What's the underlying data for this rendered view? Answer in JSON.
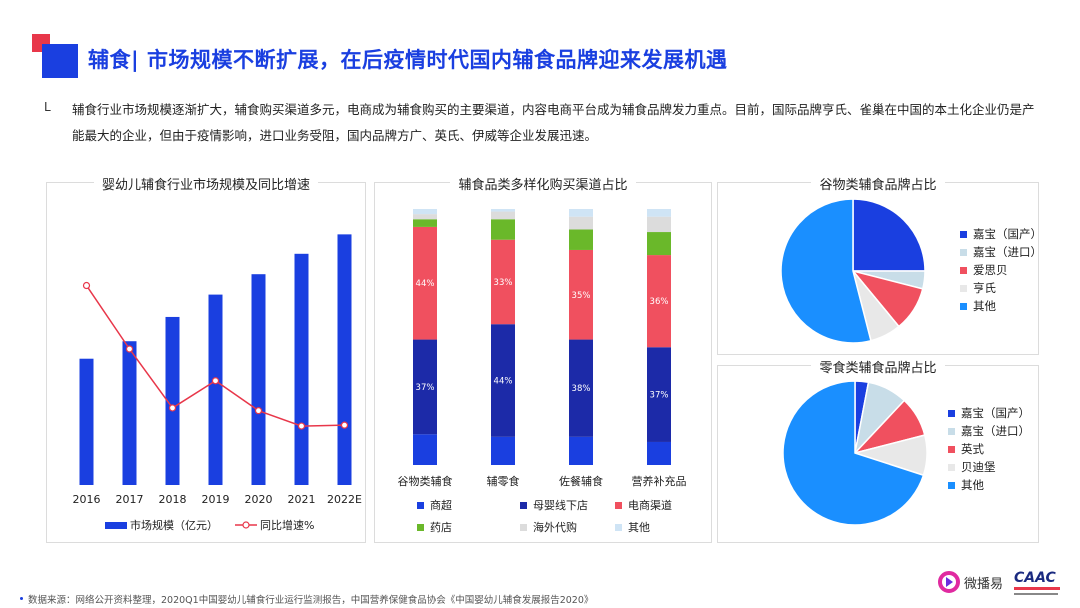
{
  "header": {
    "title": "辅食| 市场规模不断扩展，在后疫情时代国内辅食品牌迎来发展机遇",
    "bullet": "L",
    "summary": "辅食行业市场规模逐渐扩大，辅食购买渠道多元，电商成为辅食购买的主要渠道，内容电商平台成为辅食品牌发力重点。目前，国际品牌亨氏、雀巢在中国的本土化企业仍是产能最大的企业，但由于疫情影响，进口业务受阻，国内品牌方广、英氏、伊威等企业发展迅速。"
  },
  "colors": {
    "accent_blue": "#1a3fe0",
    "accent_red": "#e8374a"
  },
  "chart_data": [
    {
      "type": "bar",
      "title": "婴幼儿辅食行业市场规模及同比增速",
      "categories": [
        "2016",
        "2017",
        "2018",
        "2019",
        "2020",
        "2021",
        "2022E"
      ],
      "series": [
        {
          "name": "市场规模（亿元）",
          "type": "bar",
          "color": "#1a3fe0",
          "values": [
            130,
            148,
            173,
            196,
            217,
            238,
            258
          ]
        },
        {
          "name": "同比增速%",
          "type": "line",
          "color": "#e8374a",
          "values": [
            22,
            15,
            8.5,
            11.5,
            8.2,
            6.5,
            6.6
          ]
        }
      ],
      "ylim": [
        0,
        280
      ],
      "ylim_secondary": [
        0,
        30
      ],
      "legend": [
        "市场规模（亿元）",
        "同比增速%"
      ],
      "legend_position": "bottom",
      "grid": false
    },
    {
      "type": "bar",
      "stacked": true,
      "percent": true,
      "title": "辅食品类多样化购买渠道占比",
      "categories": [
        "谷物类辅食",
        "辅零食",
        "佐餐辅食",
        "营养补充品"
      ],
      "series": [
        {
          "name": "商超",
          "color": "#1a3fe0",
          "values": [
            12,
            11,
            11,
            9
          ]
        },
        {
          "name": "母婴线下店",
          "color": "#1c2aa8",
          "values": [
            37,
            44,
            38,
            37
          ]
        },
        {
          "name": "电商渠道",
          "color": "#f0505f",
          "values": [
            44,
            33,
            35,
            36
          ]
        },
        {
          "name": "药店",
          "color": "#6ab82a",
          "values": [
            3,
            8,
            8,
            9
          ]
        },
        {
          "name": "海外代购",
          "color": "#dcdcdc",
          "values": [
            2,
            3,
            5,
            6
          ]
        },
        {
          "name": "其他",
          "color": "#cfe4f5",
          "values": [
            2,
            1,
            3,
            3
          ]
        }
      ],
      "data_labels": [
        {
          "category": "谷物类辅食",
          "series": "母婴线下店",
          "label": "37%"
        },
        {
          "category": "谷物类辅食",
          "series": "电商渠道",
          "label": "44%"
        },
        {
          "category": "辅零食",
          "series": "母婴线下店",
          "label": "44%"
        },
        {
          "category": "辅零食",
          "series": "电商渠道",
          "label": "33%"
        },
        {
          "category": "佐餐辅食",
          "series": "母婴线下店",
          "label": "38%"
        },
        {
          "category": "佐餐辅食",
          "series": "电商渠道",
          "label": "35%"
        },
        {
          "category": "营养补充品",
          "series": "母婴线下店",
          "label": "37%"
        },
        {
          "category": "营养补充品",
          "series": "电商渠道",
          "label": "36%"
        }
      ],
      "ylim": [
        0,
        100
      ],
      "legend_position": "bottom"
    },
    {
      "type": "pie",
      "title": "谷物类辅食品牌占比",
      "labels": [
        "嘉宝（国产）",
        "嘉宝（进口）",
        "爱思贝",
        "亨氏",
        "其他"
      ],
      "values": [
        25,
        4,
        10,
        7,
        54
      ],
      "colors": [
        "#1a3fe0",
        "#c8dde8",
        "#f0505f",
        "#e8e8e8",
        "#1a8fff"
      ],
      "legend_position": "right"
    },
    {
      "type": "pie",
      "title": "零食类辅食品牌占比",
      "labels": [
        "嘉宝（国产）",
        "嘉宝（进口）",
        "英式",
        "贝迪堡",
        "其他"
      ],
      "values": [
        3,
        9,
        9,
        9,
        70
      ],
      "colors": [
        "#1a3fe0",
        "#c8dde8",
        "#f0505f",
        "#e8e8e8",
        "#1a8fff"
      ],
      "legend_position": "right"
    }
  ],
  "footer": {
    "source": "数据来源：网络公开资料整理，2020Q1中国婴幼儿辅食行业运行监测报告，中国营养保健食品协会《中国婴幼儿辅食发展报告2020》"
  },
  "logos": {
    "logo1_text": "微播易",
    "logo2_text": "CAAC"
  }
}
